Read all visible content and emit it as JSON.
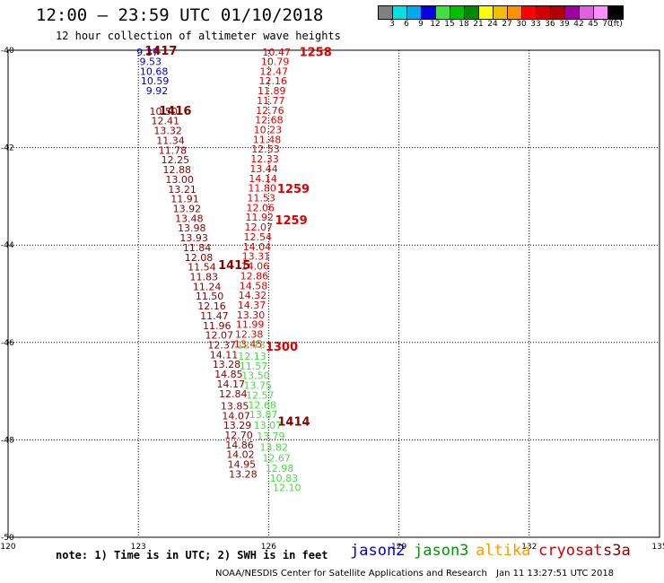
{
  "header": {
    "title": "12:00 – 23:59 UTC 01/10/2018",
    "subtitle": "12 hour collection of altimeter wave heights"
  },
  "colorbar": {
    "colors": [
      "#808080",
      "#00e0e0",
      "#00a8f0",
      "#0000e0",
      "#40e040",
      "#00c000",
      "#008800",
      "#ffff00",
      "#f0c000",
      "#ff9000",
      "#ff0000",
      "#d00000",
      "#b00000",
      "#a000a0",
      "#e060e0",
      "#ff90ff",
      "#000000"
    ],
    "labels": [
      "3",
      "6",
      "9",
      "12",
      "15",
      "18",
      "21",
      "24",
      "27",
      "30",
      "33",
      "36",
      "39",
      "42",
      "45",
      "70",
      "(ft)"
    ]
  },
  "note": "note: 1) Time is in UTC; 2) SWH is in feet",
  "legend": [
    {
      "name": "jason2",
      "color": "#0000cc"
    },
    {
      "name": "jason3",
      "color": "#009900"
    },
    {
      "name": "altika",
      "color": "#ff9900"
    },
    {
      "name": "cryosat",
      "color": "#cc0000"
    },
    {
      "name": "s3a",
      "color": "#880000"
    }
  ],
  "credit": "NOAA/NESDIS Center for Satellite Applications and Research",
  "timestamp": "Jan 11 13:27:51 UTC 2018",
  "chart_data": {
    "type": "scatter",
    "xlim": [
      120,
      135
    ],
    "ylim": [
      -50,
      -40
    ],
    "x_ticks": [
      120,
      123,
      126,
      129,
      132,
      135
    ],
    "y_ticks": [
      -40,
      -42,
      -44,
      -46,
      -48,
      -50
    ],
    "grid": "dotted",
    "colors": {
      "jason2": "#0000cc",
      "jason3": "#44dd44",
      "cryosat": "#dd0000",
      "s3a": "#880000"
    },
    "tracks": [
      {
        "satellite": "jason2",
        "points": [
          {
            "lon": 123.21,
            "lat": -40.04,
            "v": "9.37"
          },
          {
            "lon": 123.28,
            "lat": -40.23,
            "v": "9.53"
          },
          {
            "lon": 123.36,
            "lat": -40.43,
            "v": "10.68"
          },
          {
            "lon": 123.38,
            "lat": -40.63,
            "v": "10.59"
          },
          {
            "lon": 123.43,
            "lat": -40.83,
            "v": "9.92"
          }
        ]
      },
      {
        "satellite": "s3a",
        "points": [
          {
            "lon": 123.58,
            "lat": -41.25,
            "v": "10.50"
          },
          {
            "lon": 123.62,
            "lat": -41.45,
            "v": "12.41"
          },
          {
            "lon": 123.68,
            "lat": -41.65,
            "v": "13.32"
          },
          {
            "lon": 123.74,
            "lat": -41.85,
            "v": "11.34"
          },
          {
            "lon": 123.79,
            "lat": -42.05,
            "v": "11.78"
          },
          {
            "lon": 123.85,
            "lat": -42.25,
            "v": "12.25"
          },
          {
            "lon": 123.89,
            "lat": -42.45,
            "v": "12.88"
          },
          {
            "lon": 123.95,
            "lat": -42.65,
            "v": "13.00"
          },
          {
            "lon": 124.01,
            "lat": -42.85,
            "v": "13.21"
          },
          {
            "lon": 124.07,
            "lat": -43.05,
            "v": "11.91"
          },
          {
            "lon": 124.12,
            "lat": -43.25,
            "v": "13.92"
          },
          {
            "lon": 124.17,
            "lat": -43.45,
            "v": "13.48"
          },
          {
            "lon": 124.23,
            "lat": -43.65,
            "v": "13.98"
          },
          {
            "lon": 124.28,
            "lat": -43.85,
            "v": "13.93"
          },
          {
            "lon": 124.35,
            "lat": -44.05,
            "v": "11.84"
          },
          {
            "lon": 124.39,
            "lat": -44.25,
            "v": "12.08"
          },
          {
            "lon": 124.46,
            "lat": -44.45,
            "v": "11.54"
          },
          {
            "lon": 124.51,
            "lat": -44.65,
            "v": "11.83"
          },
          {
            "lon": 124.58,
            "lat": -44.85,
            "v": "11.24"
          },
          {
            "lon": 124.64,
            "lat": -45.05,
            "v": "11.50"
          },
          {
            "lon": 124.69,
            "lat": -45.25,
            "v": "12.16"
          },
          {
            "lon": 124.75,
            "lat": -45.45,
            "v": "11.47"
          },
          {
            "lon": 124.81,
            "lat": -45.65,
            "v": "11.96"
          },
          {
            "lon": 124.86,
            "lat": -45.85,
            "v": "12.07"
          },
          {
            "lon": 124.92,
            "lat": -46.05,
            "v": "12.37"
          },
          {
            "lon": 124.97,
            "lat": -46.25,
            "v": "14.11"
          },
          {
            "lon": 125.03,
            "lat": -46.45,
            "v": "13.28"
          },
          {
            "lon": 125.08,
            "lat": -46.65,
            "v": "14.85"
          },
          {
            "lon": 125.13,
            "lat": -46.85,
            "v": "14.17"
          },
          {
            "lon": 125.18,
            "lat": -47.05,
            "v": "12.84"
          },
          {
            "lon": 125.22,
            "lat": -47.3,
            "v": "13.85"
          },
          {
            "lon": 125.25,
            "lat": -47.5,
            "v": "14.07"
          },
          {
            "lon": 125.28,
            "lat": -47.7,
            "v": "13.29"
          },
          {
            "lon": 125.31,
            "lat": -47.9,
            "v": "12.70"
          },
          {
            "lon": 125.33,
            "lat": -48.1,
            "v": "14.86"
          },
          {
            "lon": 125.35,
            "lat": -48.3,
            "v": "14.02"
          },
          {
            "lon": 125.38,
            "lat": -48.5,
            "v": "14.95"
          },
          {
            "lon": 125.41,
            "lat": -48.7,
            "v": "13.28"
          }
        ]
      },
      {
        "satellite": "cryosat",
        "points": [
          {
            "lon": 126.18,
            "lat": -40.04,
            "v": "10.47"
          },
          {
            "lon": 126.15,
            "lat": -40.23,
            "v": "10.79"
          },
          {
            "lon": 126.12,
            "lat": -40.43,
            "v": "12.47"
          },
          {
            "lon": 126.1,
            "lat": -40.63,
            "v": "12.16"
          },
          {
            "lon": 126.07,
            "lat": -40.83,
            "v": "11.89"
          },
          {
            "lon": 126.05,
            "lat": -41.03,
            "v": "11.77"
          },
          {
            "lon": 126.03,
            "lat": -41.23,
            "v": "12.76"
          },
          {
            "lon": 126.01,
            "lat": -41.43,
            "v": "12.68"
          },
          {
            "lon": 125.98,
            "lat": -41.63,
            "v": "10.23"
          },
          {
            "lon": 125.96,
            "lat": -41.83,
            "v": "11.48"
          },
          {
            "lon": 125.93,
            "lat": -42.03,
            "v": "12.53"
          },
          {
            "lon": 125.91,
            "lat": -42.23,
            "v": "12.33"
          },
          {
            "lon": 125.89,
            "lat": -42.43,
            "v": "13.44"
          },
          {
            "lon": 125.87,
            "lat": -42.63,
            "v": "14.14"
          },
          {
            "lon": 125.85,
            "lat": -42.83,
            "v": "11.80"
          },
          {
            "lon": 125.83,
            "lat": -43.03,
            "v": "11.53"
          },
          {
            "lon": 125.81,
            "lat": -43.23,
            "v": "12.06"
          },
          {
            "lon": 125.79,
            "lat": -43.43,
            "v": "11.92"
          },
          {
            "lon": 125.77,
            "lat": -43.63,
            "v": "12.07"
          },
          {
            "lon": 125.75,
            "lat": -43.83,
            "v": "12.54"
          },
          {
            "lon": 125.73,
            "lat": -44.03,
            "v": "14.04"
          },
          {
            "lon": 125.71,
            "lat": -44.23,
            "v": "13.31"
          },
          {
            "lon": 125.69,
            "lat": -44.43,
            "v": "14.06"
          },
          {
            "lon": 125.67,
            "lat": -44.63,
            "v": "12.86"
          },
          {
            "lon": 125.65,
            "lat": -44.83,
            "v": "14.58"
          },
          {
            "lon": 125.63,
            "lat": -45.03,
            "v": "14.32"
          },
          {
            "lon": 125.61,
            "lat": -45.23,
            "v": "14.37"
          },
          {
            "lon": 125.59,
            "lat": -45.43,
            "v": "13.30"
          },
          {
            "lon": 125.57,
            "lat": -45.63,
            "v": "11.99"
          },
          {
            "lon": 125.55,
            "lat": -45.83,
            "v": "12.38"
          },
          {
            "lon": 125.53,
            "lat": -46.03,
            "v": "13.45"
          }
        ]
      },
      {
        "satellite": "jason3",
        "points": [
          {
            "lon": 125.6,
            "lat": -46.05,
            "v": "12.73"
          },
          {
            "lon": 125.62,
            "lat": -46.28,
            "v": "12.13"
          },
          {
            "lon": 125.65,
            "lat": -46.48,
            "v": "11.57"
          },
          {
            "lon": 125.7,
            "lat": -46.68,
            "v": "13.50"
          },
          {
            "lon": 125.75,
            "lat": -46.88,
            "v": "13.75"
          },
          {
            "lon": 125.8,
            "lat": -47.08,
            "v": "12.57"
          },
          {
            "lon": 125.85,
            "lat": -47.28,
            "v": "12.68"
          },
          {
            "lon": 125.88,
            "lat": -47.48,
            "v": "13.87"
          },
          {
            "lon": 125.98,
            "lat": -47.7,
            "v": "13.07"
          },
          {
            "lon": 126.05,
            "lat": -47.92,
            "v": "13.79"
          },
          {
            "lon": 126.12,
            "lat": -48.15,
            "v": "13.82"
          },
          {
            "lon": 126.18,
            "lat": -48.37,
            "v": "12.67"
          },
          {
            "lon": 126.25,
            "lat": -48.58,
            "v": "12.98"
          },
          {
            "lon": 126.35,
            "lat": -48.78,
            "v": "10.83"
          },
          {
            "lon": 126.42,
            "lat": -48.98,
            "v": "12.10"
          }
        ]
      }
    ],
    "time_labels": [
      {
        "lon": 123.52,
        "lat": -40.02,
        "t": "1417",
        "satellite": "s3a"
      },
      {
        "lon": 127.08,
        "lat": -40.05,
        "t": "1258",
        "satellite": "cryosat"
      },
      {
        "lon": 123.85,
        "lat": -41.25,
        "t": "1416",
        "satellite": "s3a"
      },
      {
        "lon": 126.57,
        "lat": -42.85,
        "t": "1259",
        "satellite": "cryosat"
      },
      {
        "lon": 126.52,
        "lat": -43.5,
        "t": "1259",
        "satellite": "cryosat"
      },
      {
        "lon": 125.21,
        "lat": -44.42,
        "t": "1415",
        "satellite": "s3a"
      },
      {
        "lon": 126.3,
        "lat": -46.1,
        "t": "1300",
        "satellite": "cryosat"
      },
      {
        "lon": 126.58,
        "lat": -47.63,
        "t": "1414",
        "satellite": "s3a"
      }
    ]
  }
}
